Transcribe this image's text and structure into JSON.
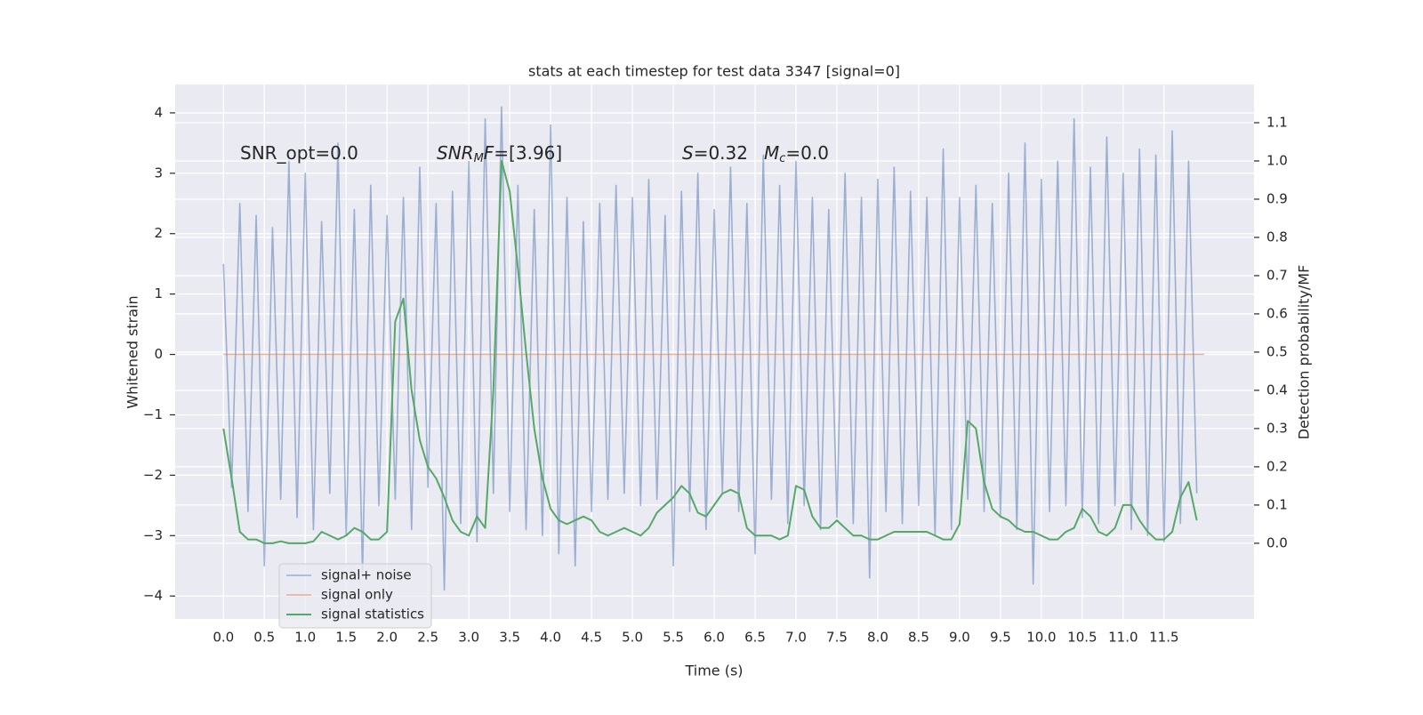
{
  "chart_data": {
    "type": "line",
    "title": "stats at each timestep for test data 3347 [signal=0]",
    "xlabel": "Time (s)",
    "ylabel": "Whitened strain",
    "y2label": "Detection probability/MF",
    "grid": true,
    "legend": "lower left",
    "xlim": [
      -0.59,
      12.6
    ],
    "ylim": [
      -4.38,
      4.47
    ],
    "y2lim": [
      -0.198,
      1.2
    ],
    "xticks": [
      {
        "value": 0,
        "label": "0.0"
      },
      {
        "value": 0.5,
        "label": "0.5"
      },
      {
        "value": 1,
        "label": "1.0"
      },
      {
        "value": 1.5,
        "label": "1.5"
      },
      {
        "value": 2,
        "label": "2.0"
      },
      {
        "value": 2.5,
        "label": "2.5"
      },
      {
        "value": 3,
        "label": "3.0"
      },
      {
        "value": 3.5,
        "label": "3.5"
      },
      {
        "value": 4,
        "label": "4.0"
      },
      {
        "value": 4.5,
        "label": "4.5"
      },
      {
        "value": 5,
        "label": "5.0"
      },
      {
        "value": 5.5,
        "label": "5.5"
      },
      {
        "value": 6,
        "label": "6.0"
      },
      {
        "value": 6.5,
        "label": "6.5"
      },
      {
        "value": 7,
        "label": "7.0"
      },
      {
        "value": 7.5,
        "label": "7.5"
      },
      {
        "value": 8,
        "label": "8.0"
      },
      {
        "value": 8.5,
        "label": "8.5"
      },
      {
        "value": 9,
        "label": "9.0"
      },
      {
        "value": 9.5,
        "label": "9.5"
      },
      {
        "value": 10,
        "label": "10.0"
      },
      {
        "value": 10.5,
        "label": "10.5"
      },
      {
        "value": 11,
        "label": "11.0"
      },
      {
        "value": 11.5,
        "label": "11.5"
      }
    ],
    "yticks": [
      {
        "value": -4,
        "label": "−4"
      },
      {
        "value": -3,
        "label": "−3"
      },
      {
        "value": -2,
        "label": "−2"
      },
      {
        "value": -1,
        "label": "−1"
      },
      0,
      1,
      2,
      3,
      4
    ],
    "y2ticks": [
      {
        "value": 0,
        "label": "0.0"
      },
      {
        "value": 0.1,
        "label": "0.1"
      },
      {
        "value": 0.2,
        "label": "0.2"
      },
      {
        "value": 0.3,
        "label": "0.3"
      },
      {
        "value": 0.4,
        "label": "0.4"
      },
      {
        "value": 0.5,
        "label": "0.5"
      },
      {
        "value": 0.6,
        "label": "0.6"
      },
      {
        "value": 0.7,
        "label": "0.7"
      },
      {
        "value": 0.8,
        "label": "0.8"
      },
      {
        "value": 0.9,
        "label": "0.9"
      },
      {
        "value": 1,
        "label": "1.0"
      },
      {
        "value": 1.1,
        "label": "1.1"
      }
    ],
    "annotations": [
      [
        {
          "text": "SNR_opt=0.0",
          "style": "normal"
        }
      ],
      [
        {
          "text": "SNR",
          "style": "italic"
        },
        {
          "text": "M",
          "style": "sub"
        },
        {
          "text": "F",
          "style": "italic"
        },
        {
          "text": "=[3.96]",
          "style": "normal"
        }
      ],
      [
        {
          "text": "S",
          "style": "italic"
        },
        {
          "text": "=0.32",
          "style": "normal"
        }
      ],
      [
        {
          "text": "M",
          "style": "italic"
        },
        {
          "text": "c",
          "style": "sub"
        },
        {
          "text": "=0.0",
          "style": "normal"
        }
      ]
    ],
    "x": [
      0,
      0.1,
      0.2,
      0.3,
      0.4,
      0.5,
      0.6,
      0.7,
      0.8,
      0.9,
      1,
      1.1,
      1.2,
      1.3,
      1.4,
      1.5,
      1.6,
      1.7,
      1.8,
      1.9,
      2,
      2.1,
      2.2,
      2.3,
      2.4,
      2.5,
      2.6,
      2.7,
      2.8,
      2.9,
      3,
      3.1,
      3.2,
      3.3,
      3.4,
      3.5,
      3.6,
      3.7,
      3.8,
      3.9,
      4,
      4.1,
      4.2,
      4.3,
      4.4,
      4.5,
      4.6,
      4.7,
      4.8,
      4.9,
      5,
      5.1,
      5.2,
      5.3,
      5.4,
      5.5,
      5.6,
      5.7,
      5.8,
      5.9,
      6,
      6.1,
      6.2,
      6.3,
      6.4,
      6.5,
      6.6,
      6.7,
      6.8,
      6.9,
      7,
      7.1,
      7.2,
      7.3,
      7.4,
      7.5,
      7.6,
      7.7,
      7.8,
      7.9,
      8,
      8.1,
      8.2,
      8.3,
      8.4,
      8.5,
      8.6,
      8.7,
      8.8,
      8.9,
      9,
      9.1,
      9.2,
      9.3,
      9.4,
      9.5,
      9.6,
      9.7,
      9.8,
      9.9,
      10,
      10.1,
      10.2,
      10.3,
      10.4,
      10.5,
      10.6,
      10.7,
      10.8,
      10.9,
      11,
      11.1,
      11.2,
      11.3,
      11.4,
      11.5,
      11.6,
      11.7,
      11.8,
      11.9
    ],
    "series": [
      {
        "name": "signal+ noise",
        "color": "#4c72b0",
        "axis": "y",
        "values": [
          1.5,
          -2.2,
          2.5,
          -2.6,
          2.3,
          -3.5,
          2.1,
          -2.4,
          3.2,
          -2.7,
          3.0,
          -2.9,
          2.2,
          -2.3,
          3.5,
          -3.0,
          2.4,
          -3.6,
          2.8,
          -2.5,
          2.3,
          -2.4,
          2.6,
          -2.9,
          3.1,
          -2.2,
          2.5,
          -3.9,
          2.7,
          -2.8,
          3.2,
          -3.1,
          3.9,
          -2.3,
          4.1,
          -2.6,
          2.8,
          -2.9,
          2.4,
          -3.0,
          3.8,
          -3.3,
          2.6,
          -3.5,
          2.2,
          -2.6,
          2.5,
          -2.4,
          2.8,
          -2.3,
          2.6,
          -2.5,
          2.9,
          -2.4,
          2.3,
          -3.5,
          2.7,
          -2.6,
          3.0,
          -2.9,
          2.4,
          -2.3,
          3.1,
          -2.6,
          2.5,
          -3.3,
          3.3,
          -2.4,
          2.8,
          -2.8,
          3.2,
          -2.5,
          2.6,
          -2.9,
          2.4,
          -2.7,
          3.0,
          -2.8,
          2.6,
          -3.7,
          2.9,
          -2.6,
          3.1,
          -2.8,
          2.7,
          -2.5,
          2.6,
          -3.0,
          3.4,
          -2.9,
          2.6,
          -2.4,
          2.8,
          -2.6,
          2.5,
          -2.7,
          3.0,
          -2.9,
          3.5,
          -3.8,
          2.9,
          -2.6,
          3.2,
          -2.5,
          3.9,
          -2.7,
          3.1,
          -2.8,
          3.6,
          -2.5,
          3.0,
          -2.9,
          3.4,
          -3.0,
          3.3,
          -3.1,
          3.7,
          -2.8,
          3.2,
          -2.3
        ]
      },
      {
        "name": "signal only",
        "color": "#dd8452",
        "axis": "y",
        "x": [
          0,
          11.99
        ],
        "values": [
          0,
          0
        ]
      },
      {
        "name": "signal statistics",
        "color": "#55a868",
        "axis": "y2",
        "values": [
          0.3,
          0.17,
          0.03,
          0.01,
          0.01,
          0.0,
          0.0,
          0.005,
          0.0,
          0.0,
          0.0,
          0.005,
          0.03,
          0.02,
          0.01,
          0.02,
          0.04,
          0.03,
          0.01,
          0.01,
          0.03,
          0.58,
          0.64,
          0.4,
          0.27,
          0.2,
          0.17,
          0.12,
          0.06,
          0.03,
          0.02,
          0.07,
          0.04,
          0.4,
          1.0,
          0.92,
          0.72,
          0.5,
          0.3,
          0.17,
          0.09,
          0.06,
          0.05,
          0.06,
          0.07,
          0.06,
          0.03,
          0.02,
          0.03,
          0.04,
          0.03,
          0.02,
          0.04,
          0.08,
          0.1,
          0.12,
          0.15,
          0.13,
          0.08,
          0.07,
          0.1,
          0.13,
          0.14,
          0.13,
          0.04,
          0.02,
          0.02,
          0.02,
          0.01,
          0.02,
          0.15,
          0.14,
          0.07,
          0.04,
          0.04,
          0.06,
          0.04,
          0.02,
          0.02,
          0.01,
          0.01,
          0.02,
          0.03,
          0.03,
          0.03,
          0.03,
          0.03,
          0.02,
          0.01,
          0.01,
          0.05,
          0.32,
          0.3,
          0.16,
          0.09,
          0.07,
          0.06,
          0.04,
          0.03,
          0.03,
          0.02,
          0.01,
          0.01,
          0.03,
          0.04,
          0.09,
          0.07,
          0.03,
          0.02,
          0.04,
          0.1,
          0.1,
          0.06,
          0.03,
          0.01,
          0.01,
          0.03,
          0.12,
          0.16,
          0.06
        ]
      }
    ]
  }
}
